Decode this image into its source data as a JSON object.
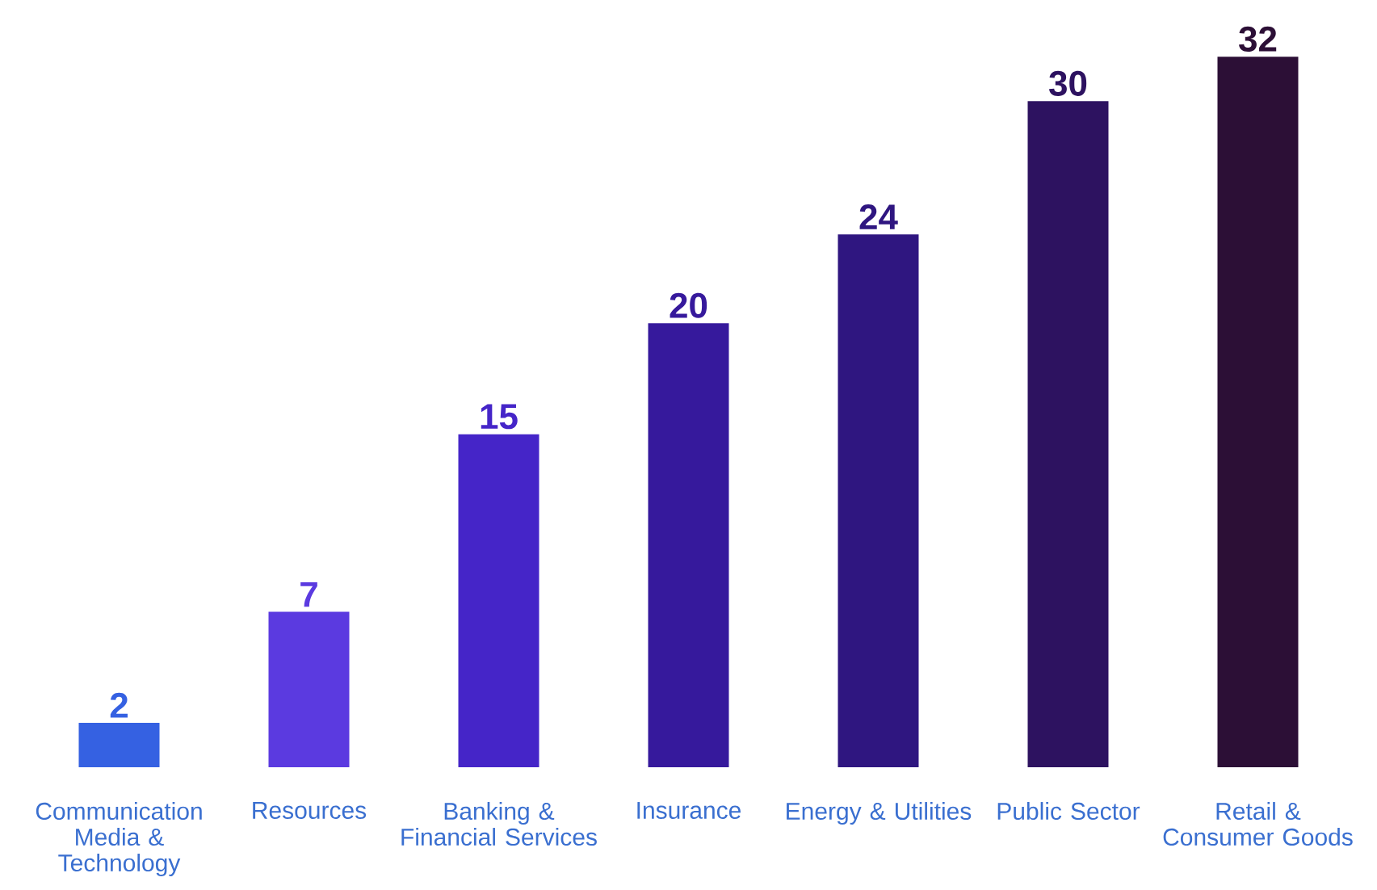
{
  "chart_data": {
    "type": "bar",
    "categories": [
      "Communication Media & Technology",
      "Resources",
      "Banking & Financial Services",
      "Insurance",
      "Energy & Utilities",
      "Public Sector",
      "Retail & Consumer Goods"
    ],
    "values": [
      2,
      7,
      15,
      20,
      24,
      30,
      32
    ],
    "colors": [
      "#3561e2",
      "#5b3ae0",
      "#4525c8",
      "#36199c",
      "#2f1680",
      "#2d1260",
      "#2c0f36"
    ],
    "data_labels": true
  }
}
